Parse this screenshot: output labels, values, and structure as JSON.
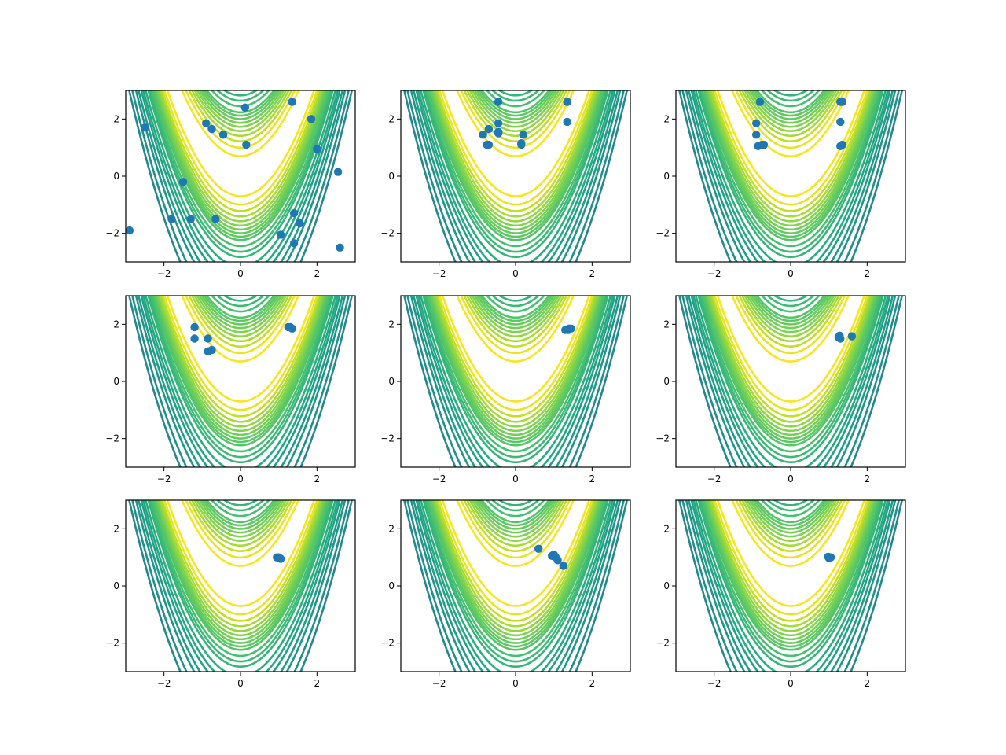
{
  "figure": {
    "layout": "3x3 grid of contour plots",
    "background": "#ffffff"
  },
  "contour_style": {
    "levels": [
      50,
      100,
      150,
      200,
      250,
      300,
      350,
      400,
      450,
      500,
      600,
      700,
      800,
      1000,
      1200,
      1400,
      1700,
      2000,
      2500,
      3000
    ],
    "colormap": [
      "#f5e61e",
      "#fde725",
      "#d0e11c",
      "#a0da39",
      "#73d056",
      "#4ac16d",
      "#2db27d",
      "#1fa187",
      "#21918c",
      "#277f8e",
      "#2e6e8e",
      "#365c8d"
    ],
    "color_scale_max": 10000
  },
  "point_color": "#1f77b4",
  "chart_data": [
    {
      "type": "scatter",
      "title": "",
      "xlabel": "",
      "ylabel": "",
      "xlim": [
        -3,
        3
      ],
      "ylim": [
        -3,
        3
      ],
      "xticks": [
        -2,
        0,
        2
      ],
      "yticks": [
        -2,
        0,
        2
      ],
      "grid": false,
      "points": [
        [
          -2.9,
          -1.9
        ],
        [
          -2.5,
          1.7
        ],
        [
          -1.8,
          -1.5
        ],
        [
          -1.5,
          -0.2
        ],
        [
          -1.3,
          -1.5
        ],
        [
          -0.9,
          1.85
        ],
        [
          -0.75,
          1.65
        ],
        [
          -0.65,
          -1.5
        ],
        [
          -0.45,
          1.45
        ],
        [
          0.12,
          2.4
        ],
        [
          0.15,
          1.1
        ],
        [
          1.05,
          -2.05
        ],
        [
          1.35,
          2.6
        ],
        [
          1.4,
          -1.3
        ],
        [
          1.4,
          -2.35
        ],
        [
          1.55,
          -1.65
        ],
        [
          1.85,
          2.0
        ],
        [
          2.0,
          0.95
        ],
        [
          2.55,
          0.15
        ],
        [
          2.6,
          -2.5
        ]
      ]
    },
    {
      "type": "scatter",
      "title": "",
      "xlabel": "",
      "ylabel": "",
      "xlim": [
        -3,
        3
      ],
      "ylim": [
        -3,
        3
      ],
      "xticks": [
        -2,
        0,
        2
      ],
      "yticks": [
        -2,
        0,
        2
      ],
      "grid": false,
      "points": [
        [
          -0.45,
          2.6
        ],
        [
          -0.45,
          1.85
        ],
        [
          -0.45,
          1.5
        ],
        [
          -0.45,
          1.55
        ],
        [
          -0.7,
          1.65
        ],
        [
          -0.75,
          1.1
        ],
        [
          -0.7,
          1.1
        ],
        [
          -0.85,
          1.45
        ],
        [
          0.15,
          1.1
        ],
        [
          0.15,
          1.15
        ],
        [
          0.2,
          1.45
        ],
        [
          1.35,
          2.6
        ],
        [
          1.35,
          2.6
        ],
        [
          1.35,
          1.9
        ]
      ]
    },
    {
      "type": "scatter",
      "title": "",
      "xlabel": "",
      "ylabel": "",
      "xlim": [
        -3,
        3
      ],
      "ylim": [
        -3,
        3
      ],
      "xticks": [
        -2,
        0,
        2
      ],
      "yticks": [
        -2,
        0,
        2
      ],
      "grid": false,
      "points": [
        [
          -0.8,
          2.6
        ],
        [
          -0.9,
          1.85
        ],
        [
          -0.9,
          1.45
        ],
        [
          -0.85,
          1.05
        ],
        [
          -0.7,
          1.1
        ],
        [
          -0.75,
          1.1
        ],
        [
          1.3,
          2.6
        ],
        [
          1.35,
          2.6
        ],
        [
          1.3,
          1.9
        ],
        [
          1.35,
          1.1
        ],
        [
          1.3,
          1.05
        ]
      ]
    },
    {
      "type": "scatter",
      "title": "",
      "xlabel": "",
      "ylabel": "",
      "xlim": [
        -3,
        3
      ],
      "ylim": [
        -3,
        3
      ],
      "xticks": [
        -2,
        0,
        2
      ],
      "yticks": [
        -2,
        0,
        2
      ],
      "grid": false,
      "points": [
        [
          -1.2,
          1.9
        ],
        [
          -1.2,
          1.5
        ],
        [
          -0.85,
          1.5
        ],
        [
          -0.85,
          1.05
        ],
        [
          -0.75,
          1.1
        ],
        [
          1.25,
          1.9
        ],
        [
          1.3,
          1.9
        ],
        [
          1.35,
          1.85
        ]
      ]
    },
    {
      "type": "scatter",
      "title": "",
      "xlabel": "",
      "ylabel": "",
      "xlim": [
        -3,
        3
      ],
      "ylim": [
        -3,
        3
      ],
      "xticks": [
        -2,
        0,
        2
      ],
      "yticks": [
        -2,
        0,
        2
      ],
      "grid": false,
      "points": [
        [
          1.3,
          1.8
        ],
        [
          1.35,
          1.82
        ],
        [
          1.4,
          1.85
        ],
        [
          1.45,
          1.85
        ],
        [
          1.38,
          1.8
        ]
      ]
    },
    {
      "type": "scatter",
      "title": "",
      "xlabel": "",
      "ylabel": "",
      "xlim": [
        -3,
        3
      ],
      "ylim": [
        -3,
        3
      ],
      "xticks": [
        -2,
        0,
        2
      ],
      "yticks": [
        -2,
        0,
        2
      ],
      "grid": false,
      "points": [
        [
          1.25,
          1.55
        ],
        [
          1.28,
          1.6
        ],
        [
          1.3,
          1.5
        ],
        [
          1.6,
          1.58
        ]
      ]
    },
    {
      "type": "scatter",
      "title": "",
      "xlabel": "",
      "ylabel": "",
      "xlim": [
        -3,
        3
      ],
      "ylim": [
        -3,
        3
      ],
      "xticks": [
        -2,
        0,
        2
      ],
      "yticks": [
        -2,
        0,
        2
      ],
      "grid": false,
      "points": [
        [
          0.95,
          1.0
        ],
        [
          1.0,
          1.0
        ],
        [
          1.05,
          0.95
        ],
        [
          1.0,
          0.98
        ]
      ]
    },
    {
      "type": "scatter",
      "title": "",
      "xlabel": "",
      "ylabel": "",
      "xlim": [
        -3,
        3
      ],
      "ylim": [
        -3,
        3
      ],
      "xticks": [
        -2,
        0,
        2
      ],
      "yticks": [
        -2,
        0,
        2
      ],
      "grid": false,
      "points": [
        [
          0.6,
          1.3
        ],
        [
          0.95,
          1.05
        ],
        [
          1.0,
          1.1
        ],
        [
          1.05,
          1.0
        ],
        [
          1.1,
          0.9
        ],
        [
          1.25,
          0.7
        ]
      ]
    },
    {
      "type": "scatter",
      "title": "",
      "xlabel": "",
      "ylabel": "",
      "xlim": [
        -3,
        3
      ],
      "ylim": [
        -3,
        3
      ],
      "xticks": [
        -2,
        0,
        2
      ],
      "yticks": [
        -2,
        0,
        2
      ],
      "grid": false,
      "points": [
        [
          0.98,
          1.02
        ],
        [
          1.02,
          1.0
        ],
        [
          1.0,
          0.98
        ],
        [
          1.05,
          1.0
        ]
      ]
    }
  ]
}
